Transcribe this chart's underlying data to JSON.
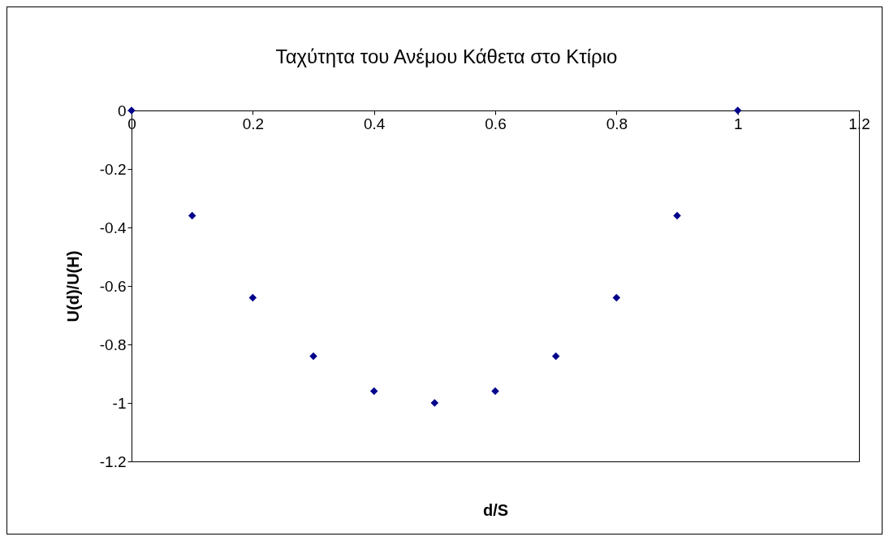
{
  "chart_data": {
    "type": "scatter",
    "title": "Ταχύτητα του Ανέμου Κάθετα στο Κτίριο",
    "xlabel": "d/S",
    "ylabel": "U(d)/U(H)",
    "x": [
      0,
      0.1,
      0.2,
      0.3,
      0.4,
      0.5,
      0.6,
      0.7,
      0.8,
      0.9,
      1
    ],
    "values": [
      0,
      -0.36,
      -0.64,
      -0.84,
      -0.96,
      -1,
      -0.96,
      -0.84,
      -0.64,
      -0.36,
      0
    ],
    "color": "#00008b",
    "marker": "diamond",
    "grid": false,
    "xlim": [
      0,
      1.2
    ],
    "xticks": [
      0,
      0.2,
      0.4,
      0.6,
      0.8,
      1,
      1.2
    ],
    "ylim": [
      -1.2,
      0
    ],
    "yticks": [
      -1.2,
      -1,
      -0.8,
      -0.6,
      -0.4,
      -0.2,
      0
    ]
  }
}
